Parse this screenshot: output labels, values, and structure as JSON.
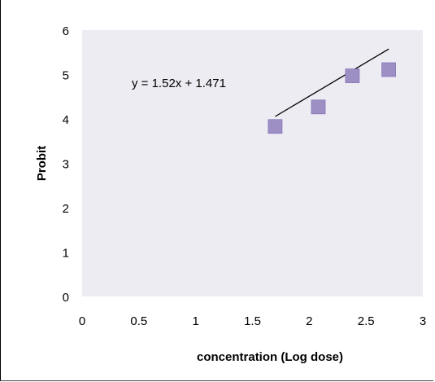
{
  "chart_data": {
    "type": "scatter",
    "title": "",
    "xlabel": "concentration (Log dose)",
    "ylabel": "Probit",
    "xlim": [
      0,
      3
    ],
    "ylim": [
      0,
      6
    ],
    "xticks": [
      "0",
      "0.5",
      "1",
      "1.5",
      "2",
      "2.5",
      "3"
    ],
    "yticks": [
      "0",
      "1",
      "2",
      "3",
      "4",
      "5",
      "6"
    ],
    "grid": false,
    "legend": "none",
    "series": [
      {
        "x": [
          1.7,
          2.08,
          2.38,
          2.7
        ],
        "y": [
          3.83,
          4.27,
          4.97,
          5.11
        ],
        "marker": "square",
        "color": "#9d8fc4"
      }
    ],
    "trendline": {
      "slope": 1.52,
      "intercept": 1.471,
      "x_range": [
        1.7,
        2.7
      ],
      "equation_label": "y = 1.52x + 1.471",
      "color": "#000000"
    },
    "plot_background": "#eeecf3"
  }
}
